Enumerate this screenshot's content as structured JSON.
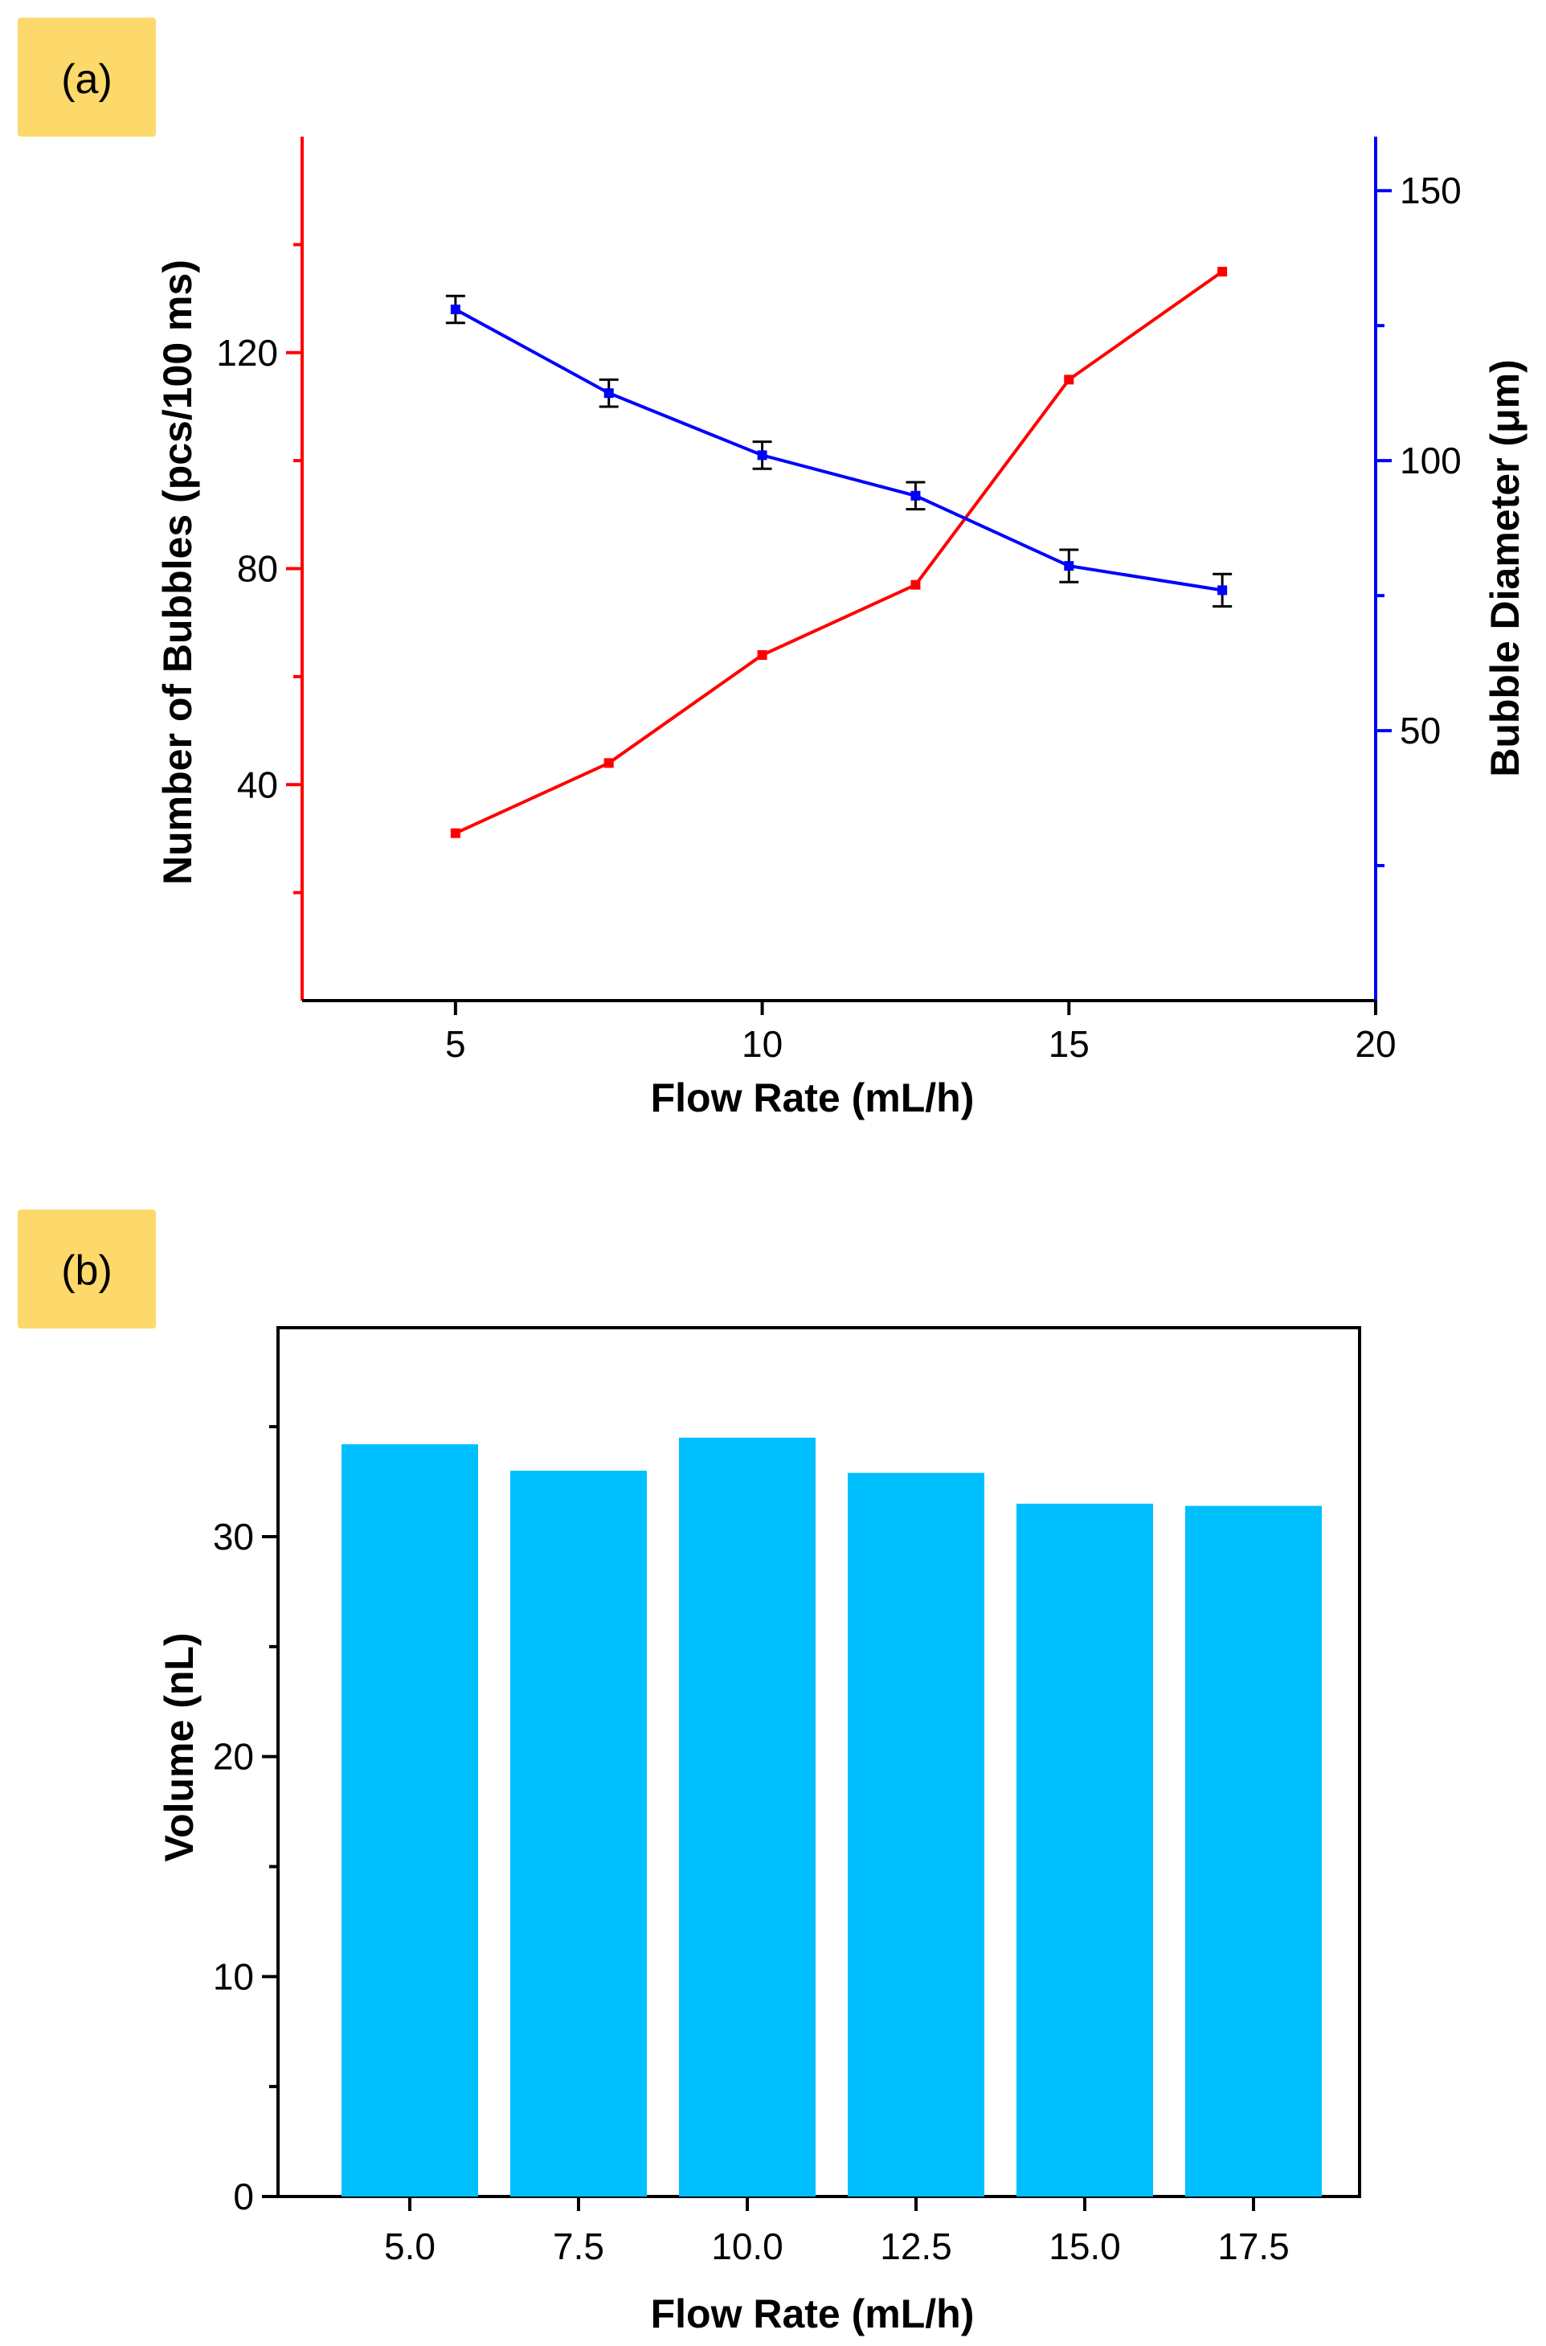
{
  "colors": {
    "count_series": "#ff0000",
    "diameter_series": "#0000ff",
    "bar_fill": "#00bfff",
    "panel_label_bg": "#fdd86a",
    "error_bar": "#000000",
    "axis": "#000000"
  },
  "chart_data": [
    {
      "panel": "(a)",
      "type": "line",
      "xlabel": "Flow Rate (mL/h)",
      "xlim": [
        2.5,
        20
      ],
      "xticks": [
        5,
        10,
        15,
        20
      ],
      "x": [
        5,
        7.5,
        10,
        12.5,
        15,
        17.5
      ],
      "grid": false,
      "left_axis": {
        "label": "Number of Bubbles (pcs/100 ms)",
        "color": "#ff0000",
        "ylim": [
          0,
          160
        ],
        "ticks": [
          40,
          80,
          120
        ],
        "minor_ticks": [
          20,
          60,
          100,
          140
        ]
      },
      "right_axis": {
        "label": "Bubble  Diameter (μm)",
        "color": "#0000ff",
        "ylim": [
          0,
          160
        ],
        "ticks": [
          50,
          100,
          150
        ],
        "minor_ticks": [
          25,
          75,
          125
        ]
      },
      "series": [
        {
          "name": "Number of Bubbles",
          "axis": "left",
          "color": "#ff0000",
          "values": [
            31,
            44,
            64,
            77,
            115,
            135
          ]
        },
        {
          "name": "Bubble Diameter",
          "axis": "right",
          "color": "#0000ff",
          "values": [
            128,
            112.5,
            101,
            93.5,
            80.5,
            76
          ],
          "error": [
            2.5,
            2.5,
            2.5,
            2.5,
            3,
            3
          ]
        }
      ]
    },
    {
      "panel": "(b)",
      "type": "bar",
      "xlabel": "Flow Rate (mL/h)",
      "ylabel": "Volume (nL)",
      "categories": [
        "5.0",
        "7.5",
        "10.0",
        "12.5",
        "15.0",
        "17.5"
      ],
      "values": [
        34.2,
        33.0,
        34.5,
        32.9,
        31.5,
        31.4
      ],
      "ylim": [
        0,
        39.5
      ],
      "yticks": [
        0,
        10,
        20,
        30
      ],
      "minor_ticks": [
        5,
        15,
        25,
        35
      ],
      "color": "#00bfff",
      "grid": false
    }
  ]
}
